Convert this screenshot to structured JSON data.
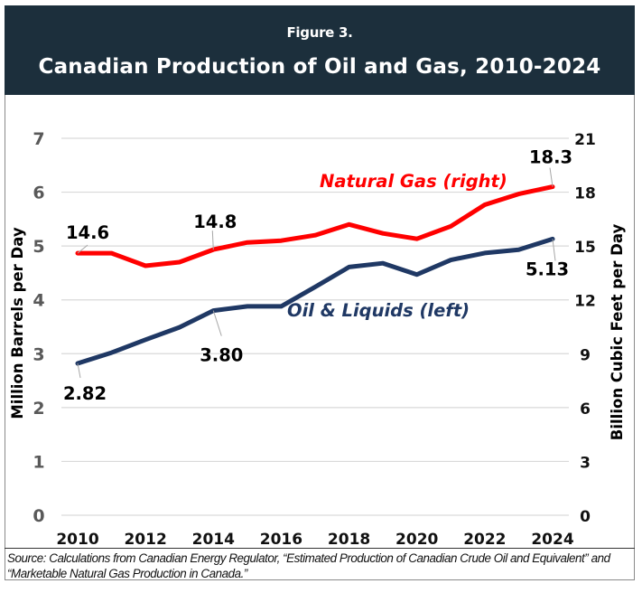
{
  "figure_number": "Figure 3.",
  "source_note": "Source: Calculations from Canadian Energy Regulator, “Estimated Production of Canadian Crude Oil and Equivalent” and “Marketable Natural Gas Production in Canada.”",
  "colors": {
    "header_bg": "#1c2f3c",
    "gas": "#ff0000",
    "oil": "#1f3864",
    "grid": "#d9d9d9",
    "tick": "#595959"
  },
  "chart_data": {
    "type": "line",
    "title": "Canadian Production of Oil and Gas, 2010-2024",
    "xlabel": "",
    "ylabel": "Million Barrels per Day",
    "y2label": "Billion Cubic Feet per Day",
    "x": [
      2010,
      2011,
      2012,
      2013,
      2014,
      2015,
      2016,
      2017,
      2018,
      2019,
      2020,
      2021,
      2022,
      2023,
      2024
    ],
    "x_ticks": [
      "2010",
      "2012",
      "2014",
      "2016",
      "2018",
      "2020",
      "2022",
      "2024"
    ],
    "x_tick_values": [
      2010,
      2012,
      2014,
      2016,
      2018,
      2020,
      2022,
      2024
    ],
    "ylim": [
      0,
      7
    ],
    "y_ticks": [
      "0",
      "1",
      "2",
      "3",
      "4",
      "5",
      "6",
      "7"
    ],
    "y2lim": [
      0,
      21
    ],
    "y2_ticks": [
      "0",
      "3",
      "6",
      "9",
      "12",
      "15",
      "18",
      "21"
    ],
    "grid": true,
    "series": [
      {
        "name": "Natural Gas (right)",
        "axis": "right",
        "color": "#ff0000",
        "values": [
          14.6,
          14.6,
          13.9,
          14.1,
          14.8,
          15.2,
          15.3,
          15.6,
          16.2,
          15.7,
          15.4,
          16.1,
          17.3,
          17.9,
          18.3
        ],
        "data_labels": [
          {
            "x": 2010,
            "text": "14.6"
          },
          {
            "x": 2014,
            "text": "14.8"
          },
          {
            "x": 2024,
            "text": "18.3"
          }
        ]
      },
      {
        "name": "Oil & Liquids (left)",
        "axis": "left",
        "color": "#1f3864",
        "values": [
          2.82,
          3.02,
          3.26,
          3.49,
          3.8,
          3.88,
          3.88,
          4.24,
          4.61,
          4.68,
          4.47,
          4.74,
          4.87,
          4.93,
          5.13
        ],
        "data_labels": [
          {
            "x": 2010,
            "text": "2.82"
          },
          {
            "x": 2014,
            "text": "3.80"
          },
          {
            "x": 2024,
            "text": "5.13"
          }
        ]
      }
    ]
  }
}
